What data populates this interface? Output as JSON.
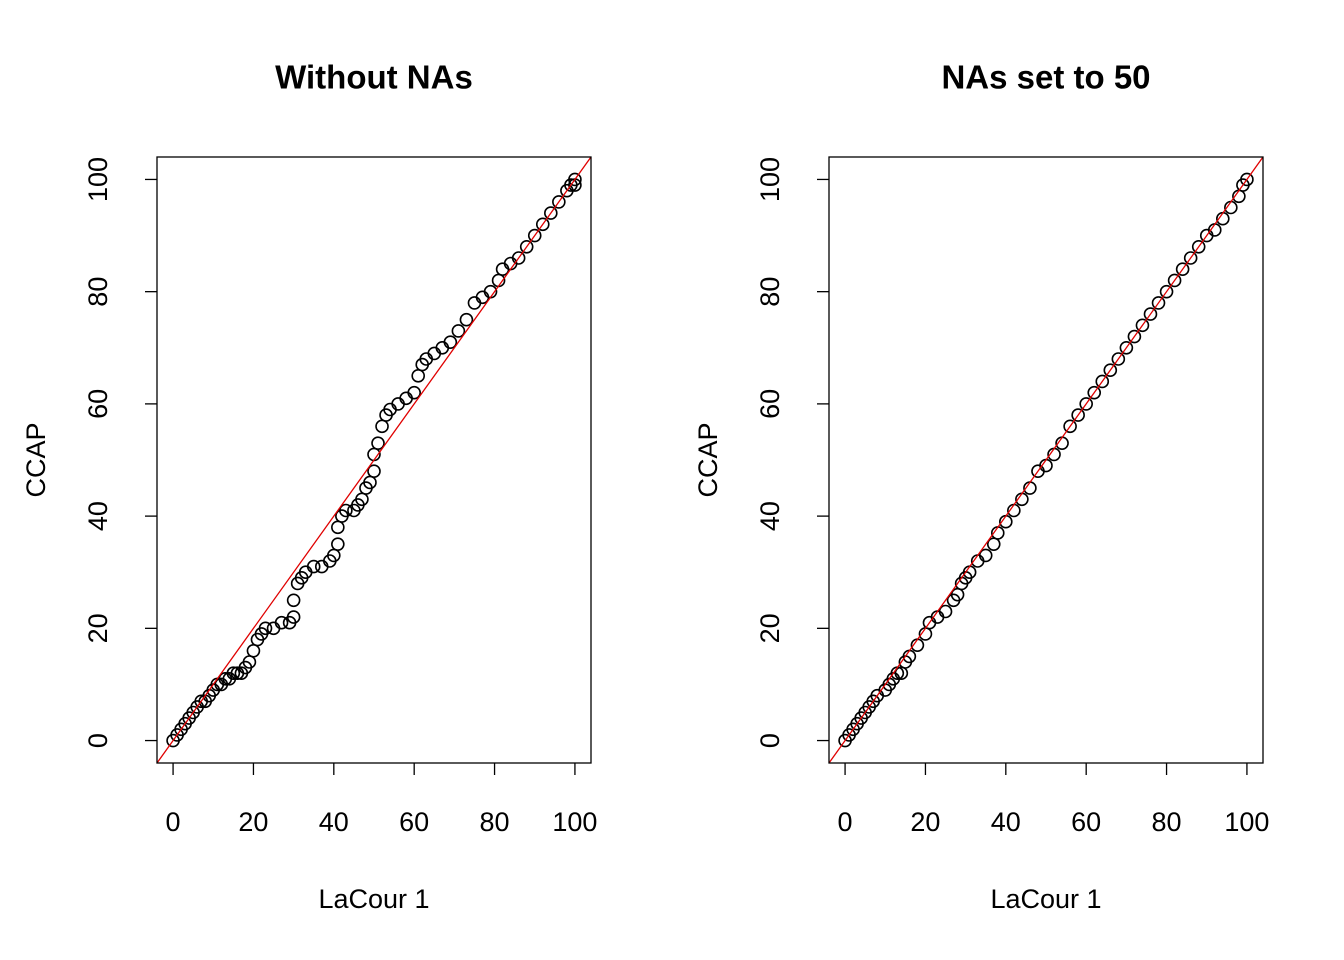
{
  "chart_data": [
    {
      "type": "scatter",
      "title": "Without NAs",
      "xlabel": "LaCour 1",
      "ylabel": "CCAP",
      "color": "#000000",
      "x": [
        0,
        1,
        2,
        3,
        4,
        5,
        6,
        7,
        8,
        9,
        10,
        11,
        12,
        13,
        14,
        15,
        16,
        17,
        18,
        19,
        20,
        21,
        22,
        23,
        25,
        27,
        29,
        30,
        30,
        31,
        32,
        33,
        35,
        37,
        39,
        40,
        41,
        41,
        42,
        43,
        45,
        46,
        47,
        48,
        49,
        50,
        50,
        51,
        52,
        53,
        54,
        56,
        58,
        60,
        61,
        62,
        63,
        65,
        67,
        69,
        71,
        73,
        75,
        77,
        79,
        81,
        82,
        84,
        86,
        88,
        90,
        92,
        94,
        96,
        98,
        99,
        100,
        100
      ],
      "y": [
        0,
        1,
        2,
        3,
        4,
        5,
        6,
        7,
        7,
        8,
        9,
        10,
        10,
        11,
        11,
        12,
        12,
        12,
        13,
        14,
        16,
        18,
        19,
        20,
        20,
        21,
        21,
        22,
        25,
        28,
        29,
        30,
        31,
        31,
        32,
        33,
        35,
        38,
        40,
        41,
        41,
        42,
        43,
        45,
        46,
        48,
        51,
        53,
        56,
        58,
        59,
        60,
        61,
        62,
        65,
        67,
        68,
        69,
        70,
        71,
        73,
        75,
        78,
        79,
        80,
        82,
        84,
        85,
        86,
        88,
        90,
        92,
        94,
        96,
        98,
        99,
        99,
        100
      ],
      "xlim": [
        -4,
        104
      ],
      "ylim": [
        -4,
        104
      ],
      "xticks": [
        0,
        20,
        40,
        60,
        80,
        100
      ],
      "yticks": [
        0,
        20,
        40,
        60,
        80,
        100
      ],
      "abline": {
        "intercept": 0,
        "slope": 1,
        "color": "#e00000"
      }
    },
    {
      "type": "scatter",
      "title": "NAs set to 50",
      "xlabel": "LaCour 1",
      "ylabel": "CCAP",
      "color": "#000000",
      "x": [
        0,
        1,
        2,
        3,
        4,
        5,
        6,
        7,
        8,
        10,
        11,
        12,
        13,
        14,
        15,
        16,
        18,
        20,
        21,
        23,
        25,
        27,
        28,
        29,
        30,
        31,
        33,
        35,
        37,
        38,
        40,
        42,
        44,
        46,
        48,
        50,
        52,
        54,
        56,
        58,
        60,
        62,
        64,
        66,
        68,
        70,
        72,
        74,
        76,
        78,
        80,
        82,
        84,
        86,
        88,
        90,
        92,
        94,
        96,
        98,
        99,
        100
      ],
      "y": [
        0,
        1,
        2,
        3,
        4,
        5,
        6,
        7,
        8,
        9,
        10,
        11,
        12,
        12,
        14,
        15,
        17,
        19,
        21,
        22,
        23,
        25,
        26,
        28,
        29,
        30,
        32,
        33,
        35,
        37,
        39,
        41,
        43,
        45,
        48,
        49,
        51,
        53,
        56,
        58,
        60,
        62,
        64,
        66,
        68,
        70,
        72,
        74,
        76,
        78,
        80,
        82,
        84,
        86,
        88,
        90,
        91,
        93,
        95,
        97,
        99,
        100
      ],
      "xlim": [
        -4,
        104
      ],
      "ylim": [
        -4,
        104
      ],
      "xticks": [
        0,
        20,
        40,
        60,
        80,
        100
      ],
      "yticks": [
        0,
        20,
        40,
        60,
        80,
        100
      ],
      "abline": {
        "intercept": 0,
        "slope": 1,
        "color": "#e00000"
      }
    }
  ]
}
